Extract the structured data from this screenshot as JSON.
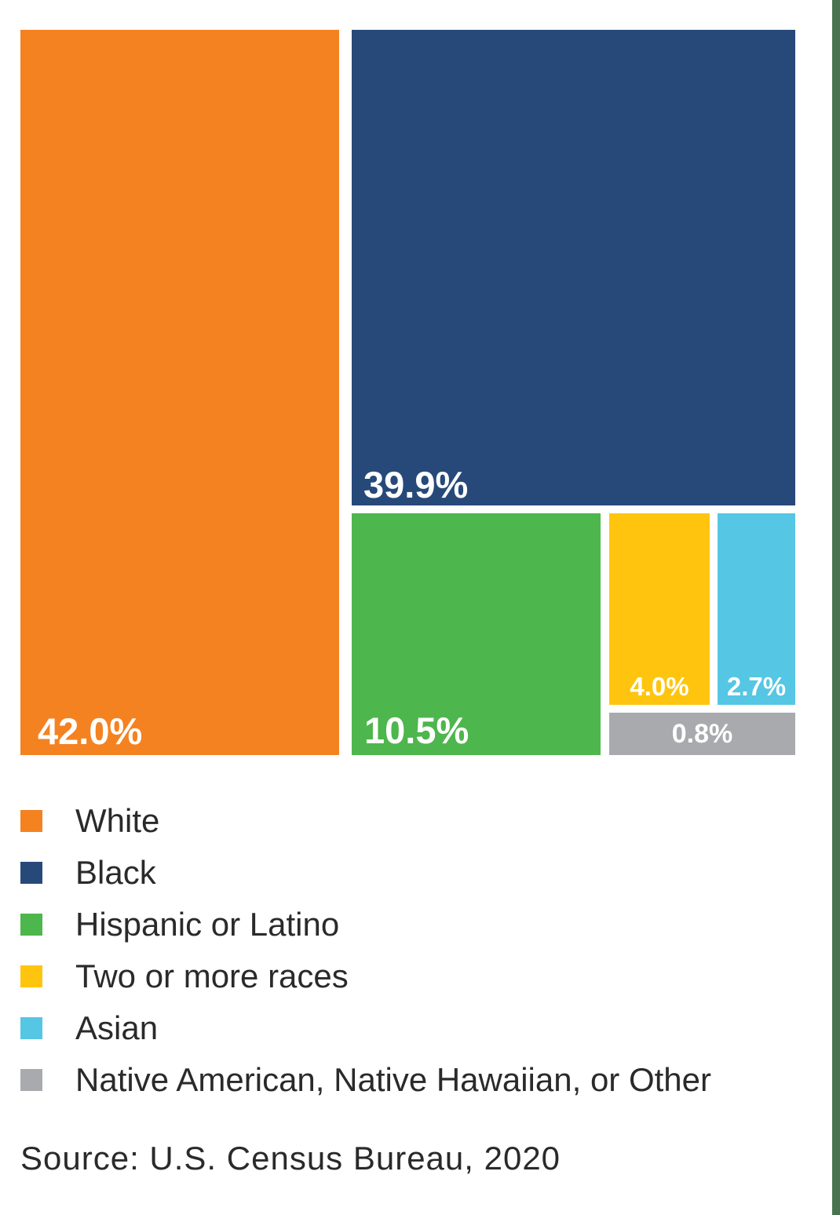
{
  "chart_data": {
    "type": "treemap",
    "units": "%",
    "series": [
      {
        "label": "White",
        "value": 42.0,
        "display": "42.0%",
        "color": "#F58220"
      },
      {
        "label": "Black",
        "value": 39.9,
        "display": "39.9%",
        "color": "#27497A"
      },
      {
        "label": "Hispanic or Latino",
        "value": 10.5,
        "display": "10.5%",
        "color": "#4DB64C"
      },
      {
        "label": "Two or more races",
        "value": 4.0,
        "display": "4.0%",
        "color": "#FFC40E"
      },
      {
        "label": "Asian",
        "value": 2.7,
        "display": "2.7%",
        "color": "#55C6E3"
      },
      {
        "label": "Native American, Native Hawaiian, or Other",
        "value": 0.8,
        "display": "0.8%",
        "color": "#A8AAAD"
      }
    ],
    "legend_position": "bottom-left",
    "value_label_color": "#FFFFFF",
    "source": "Source: U.S. Census Bureau, 2020"
  },
  "source_note": "Source: U.S. Census Bureau, 2020",
  "edge_stripe_color": "#4A7351"
}
